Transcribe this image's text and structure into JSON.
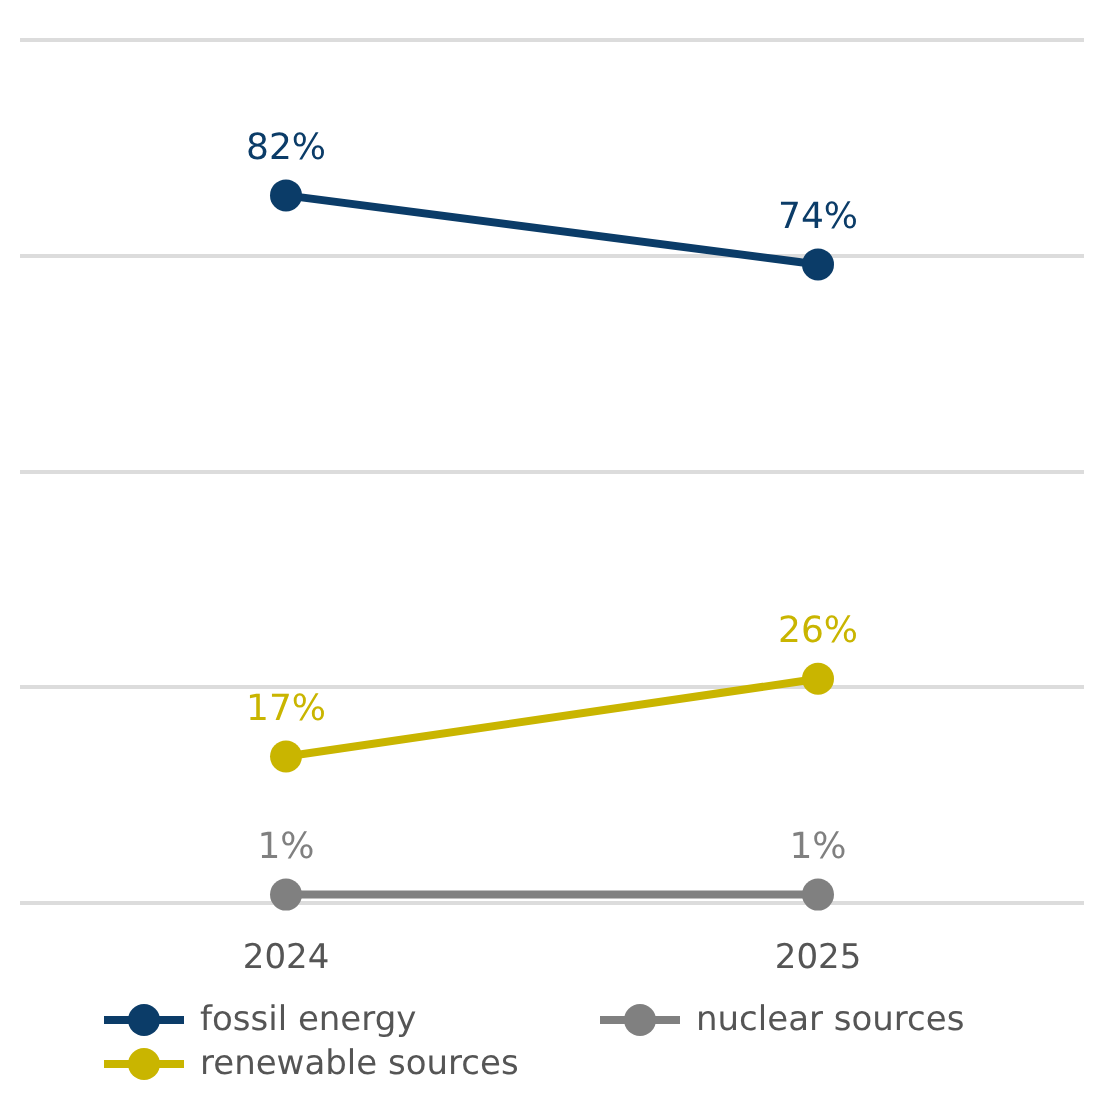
{
  "chart_data": {
    "type": "line",
    "categories": [
      "2024",
      "2025"
    ],
    "series": [
      {
        "name": "fossil energy",
        "color": "#0b3c68",
        "values": [
          82,
          74
        ],
        "value_labels": [
          "82%",
          "74%"
        ]
      },
      {
        "name": "renewable sources",
        "color": "#c9b500",
        "values": [
          17,
          26
        ],
        "value_labels": [
          "17%",
          "26%"
        ]
      },
      {
        "name": "nuclear sources",
        "color": "#808080",
        "values": [
          1,
          1
        ],
        "value_labels": [
          "1%",
          "1%"
        ]
      }
    ],
    "tick_labels": "x",
    "grid": "y",
    "legend": "bottom",
    "marker": "circle",
    "line_style": "solid"
  }
}
